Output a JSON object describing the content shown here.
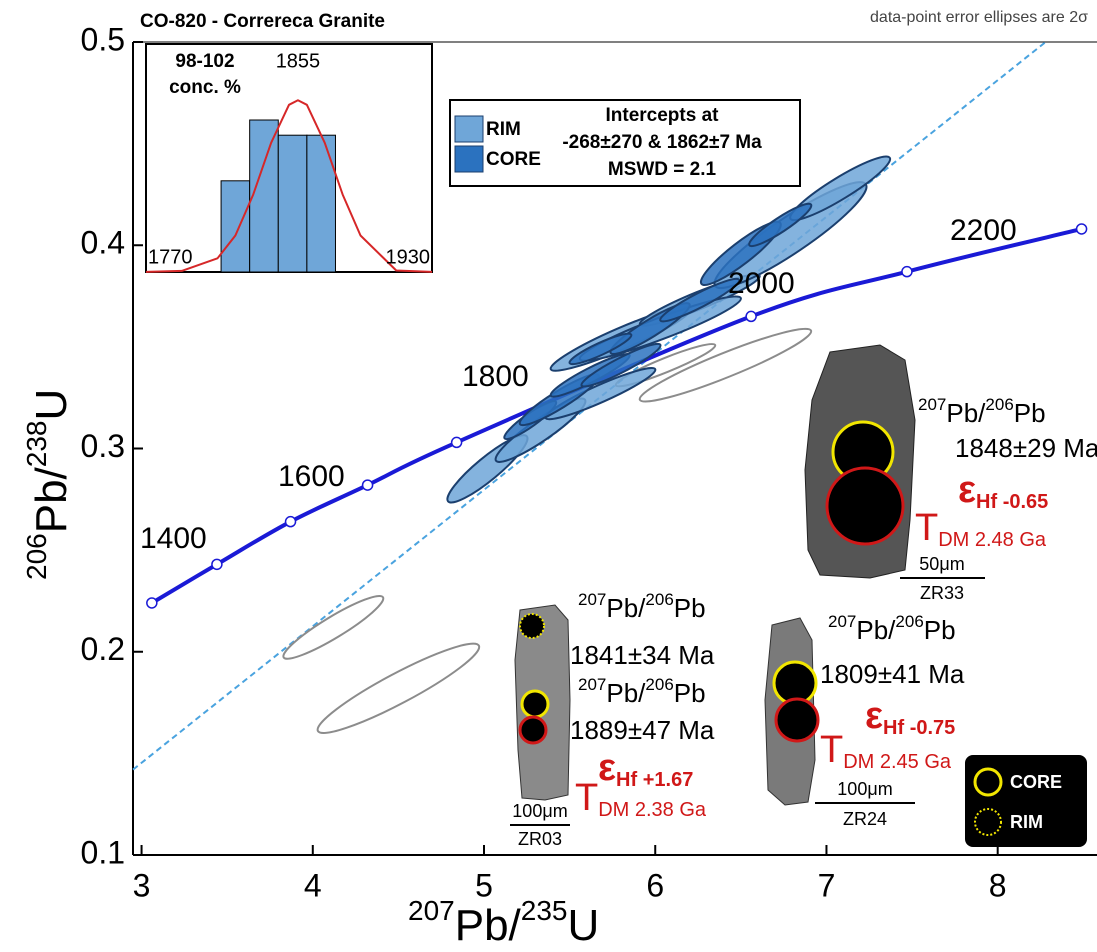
{
  "chart_data": [
    {
      "type": "scatter",
      "title": "CO-820 - Correreca Granite",
      "subtitle": "data-point error ellipses are 2σ",
      "x_label": [
        "207",
        "Pb/",
        "235",
        "U"
      ],
      "y_label": [
        "206",
        "Pb/",
        "238",
        "U"
      ],
      "xlim": [
        2.95,
        8.58
      ],
      "ylim": [
        0.1,
        0.5
      ],
      "xticks": [
        3,
        4,
        5,
        6,
        7,
        8
      ],
      "yticks": [
        0.1,
        0.2,
        0.3,
        0.4,
        0.5
      ],
      "concordia": {
        "color": "#1a1ad6",
        "x": [
          3.06,
          3.44,
          3.87,
          4.32,
          4.84,
          6.56,
          7.47,
          8.49
        ],
        "y": [
          0.224,
          0.243,
          0.264,
          0.282,
          0.303,
          0.365,
          0.387,
          0.408
        ],
        "age_labels": [
          "1400",
          "1600",
          "1800",
          "2000",
          "2200"
        ]
      },
      "discordia": {
        "color": "#4aa3df",
        "x": [
          2.95,
          8.28
        ],
        "y": [
          0.142,
          0.5
        ]
      },
      "series": [
        {
          "name": "RIM",
          "color": "#6fa6d8",
          "x": [
            5.02,
            5.33,
            5.8,
            6.26,
            6.79,
            7.08,
            5.68,
            6.03
          ],
          "y": [
            0.29,
            0.309,
            0.354,
            0.373,
            0.405,
            0.428,
            0.327,
            0.359
          ],
          "x_err": [
            0.23,
            0.26,
            0.41,
            0.35,
            0.44,
            0.29,
            0.32,
            0.47
          ],
          "y_err": [
            0.016,
            0.015,
            0.015,
            0.012,
            0.025,
            0.015,
            0.012,
            0.015
          ]
        },
        {
          "name": "CORE",
          "color": "#2b72bf",
          "x": [
            5.27,
            5.44,
            5.62,
            5.8,
            5.97,
            6.26,
            6.5,
            6.73,
            5.68
          ],
          "y": [
            0.314,
            0.324,
            0.336,
            0.341,
            0.359,
            0.373,
            0.396,
            0.41,
            0.349
          ],
          "x_err": [
            0.15,
            0.23,
            0.23,
            0.23,
            0.23,
            0.23,
            0.23,
            0.18,
            0.18
          ],
          "y_err": [
            0.009,
            0.012,
            0.01,
            0.01,
            0.012,
            0.01,
            0.015,
            0.01,
            0.007
          ]
        }
      ],
      "excluded": {
        "color": "#8c8c8c",
        "x": [
          4.12,
          4.5,
          6.06,
          6.41
        ],
        "y": [
          0.212,
          0.182,
          0.341,
          0.341
        ],
        "x_err": [
          0.29,
          0.47,
          0.29,
          0.5
        ],
        "y_err": [
          0.0148,
          0.021,
          0.0099,
          0.017
        ]
      },
      "legend_text": [
        "Intercepts at",
        "-268±270 & 1862±7 Ma",
        "MSWD = 2.1"
      ],
      "grains": [
        {
          "id": "ZR33",
          "scale": "50μm",
          "labels": [
            {
              "ratio": [
                "207",
                "Pb/",
                "206",
                "Pb"
              ],
              "age": "1848±29 Ma"
            }
          ],
          "ehf": [
            "ε",
            "Hf -0.65"
          ],
          "tdm": [
            "T",
            "DM 2.48 Ga"
          ]
        },
        {
          "id": "ZR03",
          "scale": "100μm",
          "labels": [
            {
              "ratio": [
                "207",
                "Pb/",
                "206",
                "Pb"
              ],
              "age": "1841±34 Ma"
            },
            {
              "ratio": [
                "207",
                "Pb/",
                "206",
                "Pb"
              ],
              "age": "1889±47 Ma"
            }
          ],
          "ehf": [
            "ε",
            "Hf +1.67"
          ],
          "tdm": [
            "T",
            "DM 2.38 Ga"
          ]
        },
        {
          "id": "ZR24",
          "scale": "100μm",
          "labels": [
            {
              "ratio": [
                "207",
                "Pb/",
                "206",
                "Pb"
              ],
              "age": "1809±41 Ma"
            }
          ],
          "ehf": [
            "ε",
            "Hf -0.75"
          ],
          "tdm": [
            "T",
            "DM 2.45 Ga"
          ]
        }
      ],
      "spot_legend": [
        "CORE",
        "RIM"
      ]
    },
    {
      "type": "histogram",
      "title": [
        "98-102",
        "conc. %"
      ],
      "bins": [
        1812,
        1828,
        1844,
        1860,
        1876
      ],
      "values": [
        6,
        10,
        9,
        9
      ],
      "color": "#6fa6d8",
      "xlim": [
        1770,
        1930
      ],
      "ylim": [
        0,
        15
      ],
      "xticks": [
        1770,
        1930
      ],
      "peak": 1855,
      "curve": {
        "color": "#d62728",
        "x": [
          1770,
          1790,
          1810,
          1820,
          1830,
          1840,
          1850,
          1855,
          1860,
          1870,
          1880,
          1890,
          1910,
          1930
        ],
        "y": [
          0.01,
          0.07,
          0.9,
          2.4,
          5.1,
          8.5,
          11,
          11.3,
          11,
          8.5,
          5.1,
          2.4,
          0.1,
          0.01
        ]
      }
    }
  ]
}
